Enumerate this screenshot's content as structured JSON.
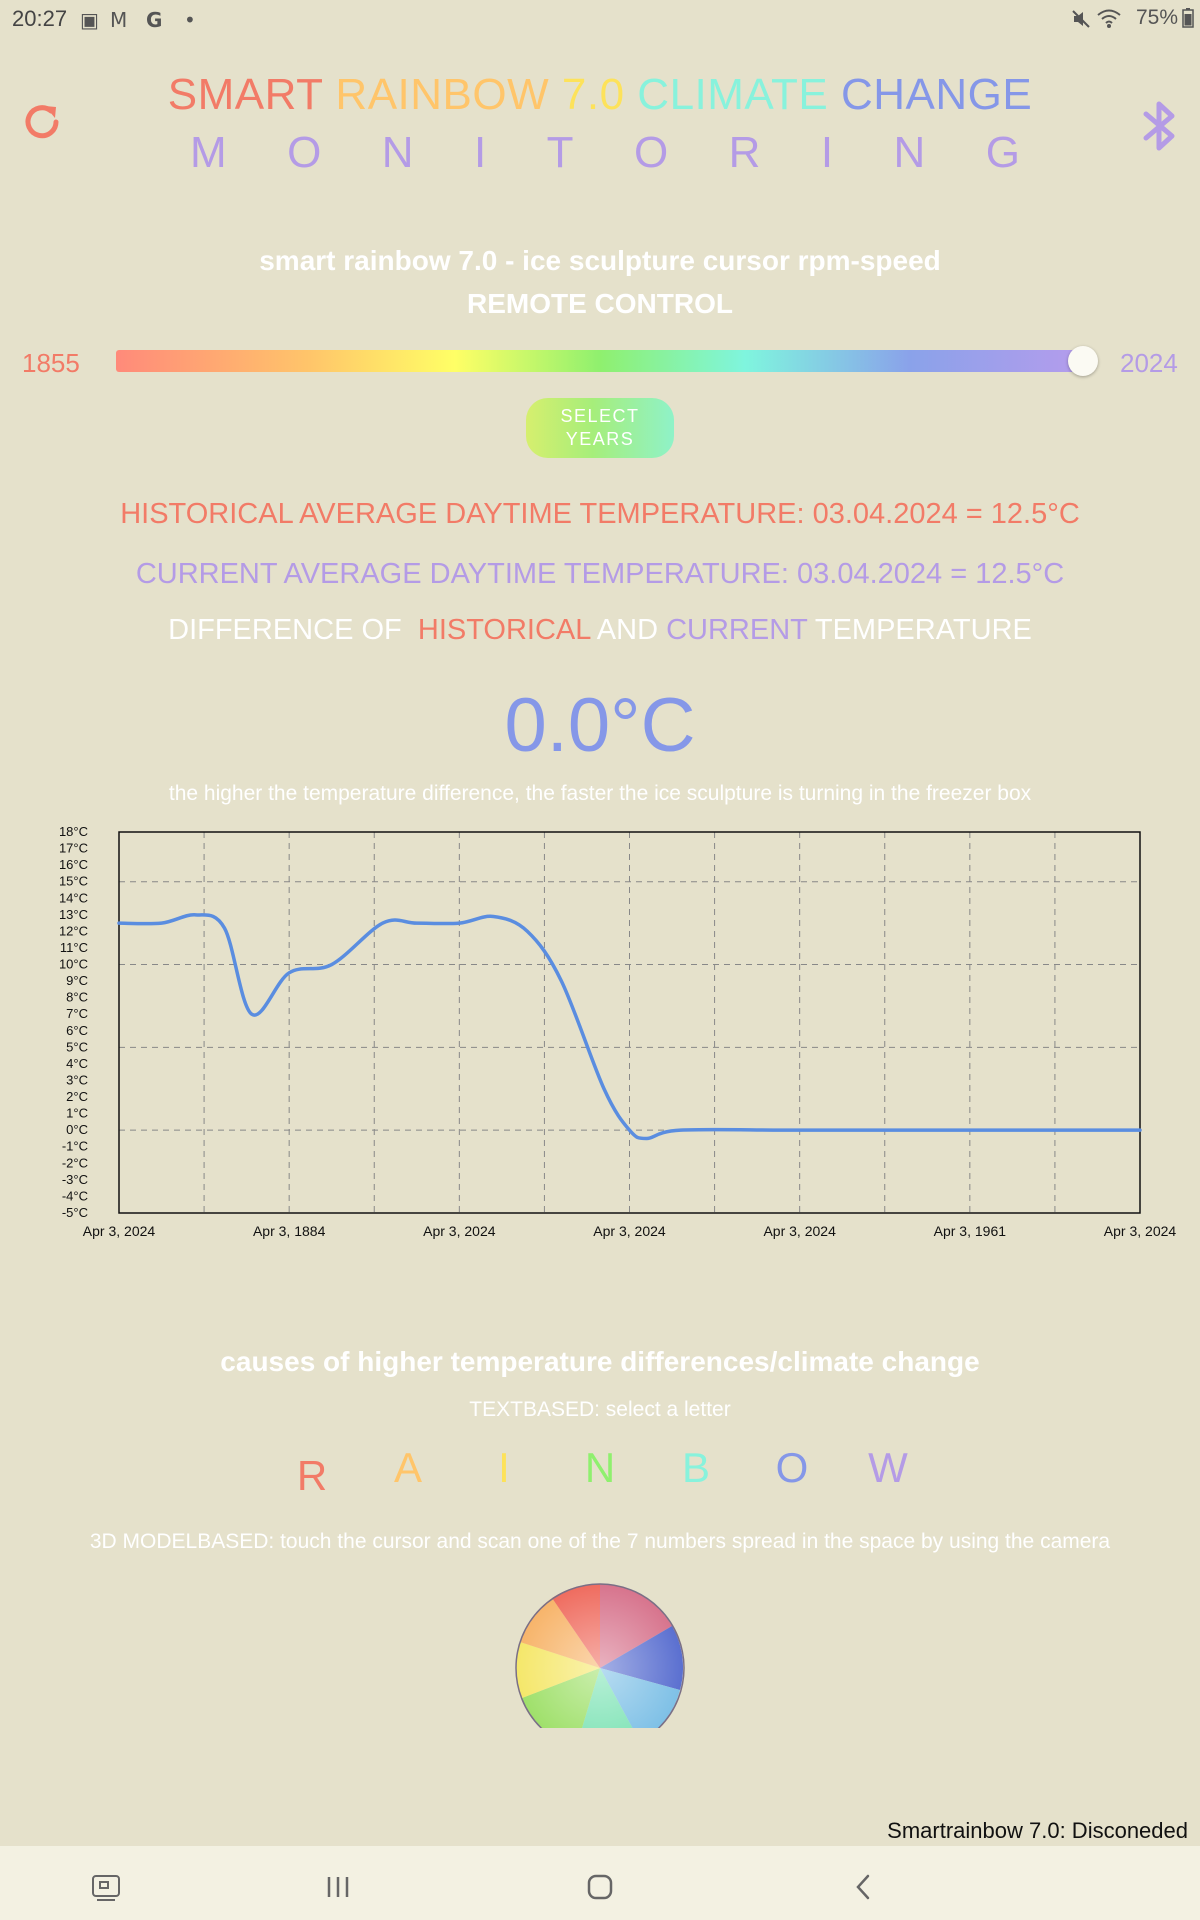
{
  "status_bar": {
    "time": "20:27",
    "battery": "75%",
    "left_icons": [
      "image-icon",
      "gmail-icon",
      "google-icon",
      "dot-icon"
    ],
    "right_icons": [
      "mute-icon",
      "wifi-icon",
      "battery-icon"
    ]
  },
  "header": {
    "title_words": [
      {
        "text": "SMART",
        "color": "#f27b67"
      },
      {
        "text": "RAINBOW",
        "color": "#ffc56a"
      },
      {
        "text": "7.0",
        "color": "#fde25a"
      },
      {
        "text": "CLIMATE",
        "color": "#88f2dc"
      },
      {
        "text": "CHANGE",
        "color": "#8597e8"
      }
    ],
    "monitoring_letters": [
      "M",
      "O",
      "N",
      "I",
      "T",
      "O",
      "R",
      "I",
      "N",
      "G"
    ],
    "accent_refresh": "#f27b67",
    "accent_bluetooth": "#b49be6"
  },
  "remote": {
    "title": "smart rainbow 7.0 - ice sculpture cursor rpm-speed",
    "subtitle": "REMOTE CONTROL"
  },
  "year_slider": {
    "min_label": "1855",
    "max_label": "2024",
    "value_fraction": 1.0
  },
  "select_years_button": "SELECT YEARS",
  "temperatures": {
    "historical": "HISTORICAL AVERAGE DAYTIME TEMPERATURE: 03.04.2024 = 12.5°C",
    "current": "CURRENT AVERAGE DAYTIME TEMPERATURE: 03.04.2024 = 12.5°C",
    "difference_prefix": "DIFFERENCE OF",
    "difference_historical": "HISTORICAL",
    "difference_and": "AND",
    "difference_current": "CURRENT",
    "difference_suffix": "TEMPERATURE",
    "difference_value": "0.0°C",
    "hint": "the higher the temperature difference, the faster the ice sculpture is turning in the freezer box"
  },
  "chart_data": {
    "type": "line",
    "x": [
      "Apr 3, 2024",
      "Apr 3, 1884",
      "Apr 3, 2024",
      "Apr 3, 2024",
      "Apr 3, 2024",
      "Apr 3, 1961",
      "Apr 3, 2024"
    ],
    "y_tick_labels": [
      "18°C",
      "17°C",
      "16°C",
      "15°C",
      "14°C",
      "13°C",
      "12°C",
      "11°C",
      "10°C",
      "9°C",
      "8°C",
      "7°C",
      "6°C",
      "5°C",
      "4°C",
      "3°C",
      "2°C",
      "1°C",
      "0°C",
      "-1°C",
      "-2°C",
      "-3°C",
      "-4°C",
      "-5°C"
    ],
    "ylim": [
      -5,
      18
    ],
    "series": [
      {
        "color": "#5a8de0",
        "points": [
          [
            0,
            12.5
          ],
          [
            0.25,
            12.5
          ],
          [
            0.45,
            13.0
          ],
          [
            0.62,
            12.2
          ],
          [
            0.78,
            7.0
          ],
          [
            1.0,
            9.5
          ],
          [
            1.25,
            10.0
          ],
          [
            1.55,
            12.5
          ],
          [
            1.75,
            12.5
          ],
          [
            2.0,
            12.5
          ],
          [
            2.2,
            12.9
          ],
          [
            2.4,
            12.0
          ],
          [
            2.6,
            9.0
          ],
          [
            2.85,
            2.5
          ],
          [
            3.0,
            0.0
          ],
          [
            3.1,
            -0.5
          ],
          [
            3.3,
            0.0
          ],
          [
            4.0,
            0.0
          ],
          [
            5.0,
            0.0
          ],
          [
            6.0,
            0.0
          ]
        ]
      }
    ],
    "grid": true
  },
  "causes": {
    "title": "causes of higher temperature differences/climate change",
    "textbased_label": "TEXTBASED: select a letter",
    "letters": [
      {
        "text": "R",
        "color": "#f27b67"
      },
      {
        "text": "A",
        "color": "#ffc56a"
      },
      {
        "text": "I",
        "color": "#fde25a"
      },
      {
        "text": "N",
        "color": "#8ff06e"
      },
      {
        "text": "B",
        "color": "#88f2dc"
      },
      {
        "text": "O",
        "color": "#8597e8"
      },
      {
        "text": "W",
        "color": "#b49be6"
      }
    ],
    "model_label": "3D MODELBASED: touch the cursor and scan one of the 7 numbers spread in the space by using the camera"
  },
  "connection_status": "Smartrainbow 7.0: Disconeded",
  "nav_bar": [
    "screenshot-icon",
    "recent-apps-icon",
    "home-icon",
    "back-icon"
  ]
}
